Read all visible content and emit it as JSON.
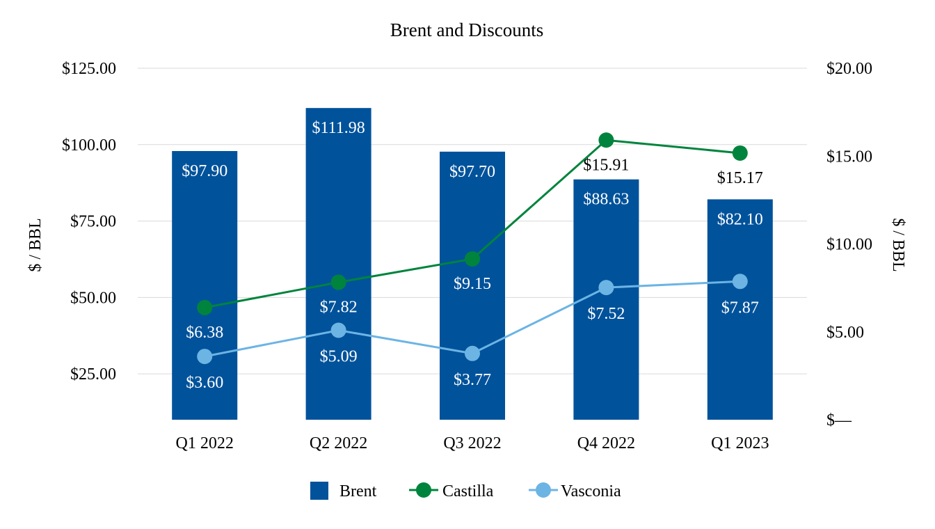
{
  "chart_data": {
    "type": "bar",
    "title": "Brent and Discounts",
    "categories": [
      "Q1 2022",
      "Q2 2022",
      "Q3 2022",
      "Q4 2022",
      "Q1 2023"
    ],
    "ylabel": "$ / BBL",
    "y2label": "$ / BBL",
    "ylim": [
      10,
      125
    ],
    "y2lim": [
      0,
      20
    ],
    "y_ticks": [
      25,
      50,
      75,
      100,
      125
    ],
    "y_tick_labels": [
      "$25.00",
      "$50.00",
      "$75.00",
      "$100.00",
      "$125.00"
    ],
    "y2_ticks": [
      0,
      5,
      10,
      15,
      20
    ],
    "y2_tick_labels": [
      "$—",
      "$5.00",
      "$10.00",
      "$15.00",
      "$20.00"
    ],
    "grid": true,
    "legend_position": "bottom",
    "series": [
      {
        "name": "Brent",
        "type": "bar",
        "axis": "left",
        "color": "#00529b",
        "values": [
          97.9,
          111.98,
          97.7,
          88.63,
          82.1
        ],
        "labels": [
          "$97.90",
          "$111.98",
          "$97.70",
          "$88.63",
          "$82.10"
        ]
      },
      {
        "name": "Castilla",
        "type": "line",
        "axis": "right",
        "color": "#00843d",
        "values": [
          6.38,
          7.82,
          9.15,
          15.91,
          15.17
        ],
        "labels": [
          "$6.38",
          "$7.82",
          "$9.15",
          "$15.91",
          "$15.17"
        ]
      },
      {
        "name": "Vasconia",
        "type": "line",
        "axis": "right",
        "color": "#6cb4e4",
        "values": [
          3.6,
          5.09,
          3.77,
          7.52,
          7.87
        ],
        "labels": [
          "$3.60",
          "$5.09",
          "$3.77",
          "$7.52",
          "$7.87"
        ]
      }
    ]
  }
}
